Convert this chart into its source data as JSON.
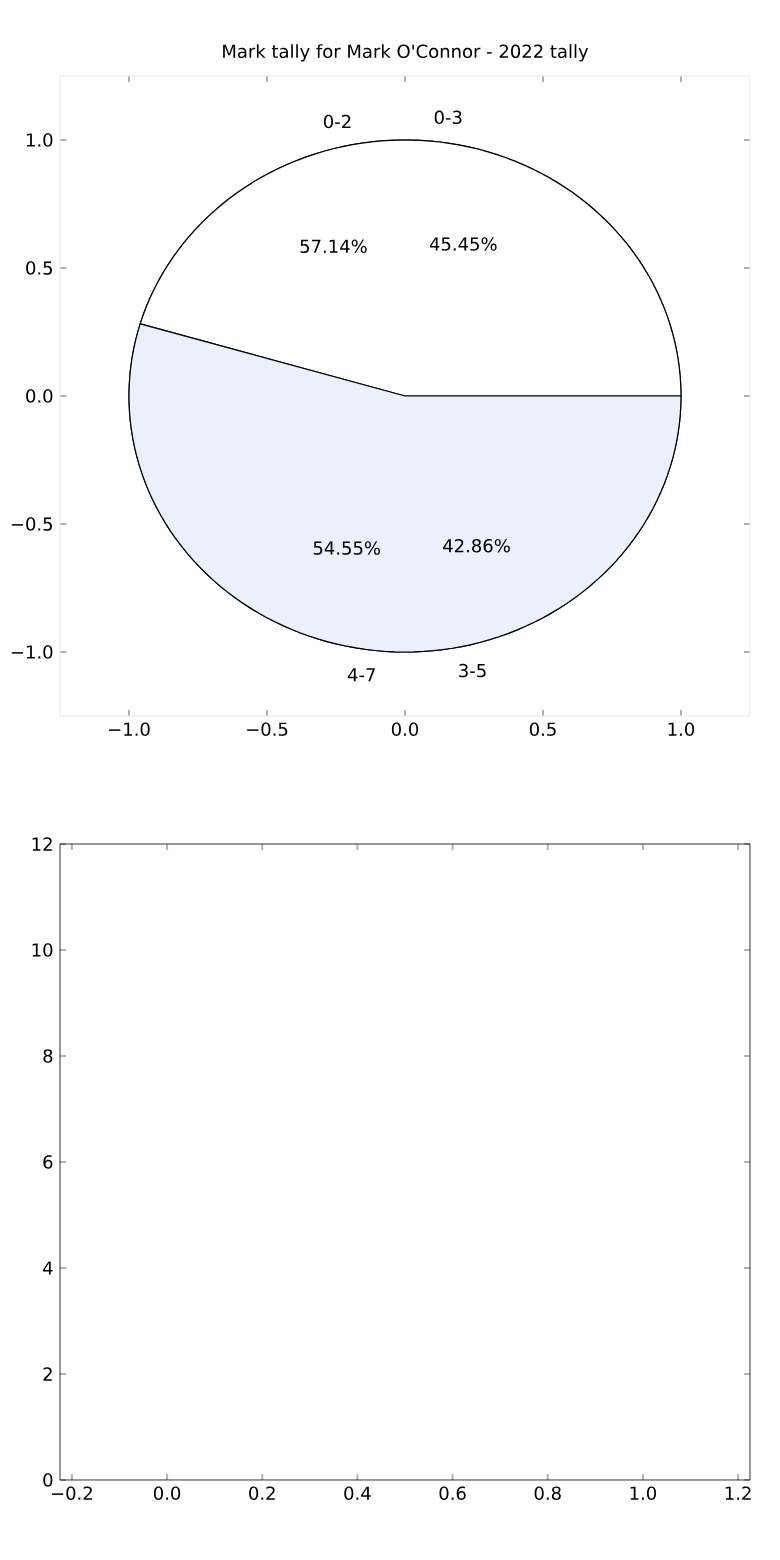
{
  "chart_data": [
    {
      "type": "line",
      "xlim": [
        -1.25,
        1.25
      ],
      "ylim": [
        -1.25,
        1.25
      ],
      "xticks": [
        {
          "value": -1,
          "label": "−1.0"
        },
        {
          "value": -0.5,
          "label": "−0.5"
        },
        {
          "value": 0,
          "label": "0.0"
        },
        {
          "value": 0.5,
          "label": "0.5"
        },
        {
          "value": 1,
          "label": "1.0"
        }
      ],
      "yticks": [
        {
          "value": -1,
          "label": "−1.0"
        },
        {
          "value": -0.5,
          "label": "−0.5"
        },
        {
          "value": 0,
          "label": "0.0"
        },
        {
          "value": 0.5,
          "label": "0.5"
        },
        {
          "value": 1,
          "label": "1.0"
        }
      ]
    },
    {
      "type": "pie",
      "title": "Mark tally for Mark O'Connor - 2022 tally",
      "categories": [
        "0-2",
        "3-5"
      ],
      "values": [
        57.14,
        42.86
      ],
      "colors": [
        "#ffffff",
        "#eaf0fc"
      ],
      "value_labels": [
        "57.14%",
        "42.86%"
      ]
    },
    {
      "type": "pie",
      "categories": [
        "0-3",
        "4-7"
      ],
      "values": [
        45.45,
        54.55
      ],
      "colors": [
        "#ffffff",
        "#eaf0fc"
      ],
      "value_labels": [
        "45.45%",
        "54.55%"
      ]
    },
    {
      "type": "line",
      "xlim": [
        -0.225,
        1.225
      ],
      "ylim": [
        0,
        12
      ],
      "xticks": [
        {
          "value": -0.2,
          "label": "−0.2"
        },
        {
          "value": 0,
          "label": "0.0"
        },
        {
          "value": 0.2,
          "label": "0.2"
        },
        {
          "value": 0.4,
          "label": "0.4"
        },
        {
          "value": 0.6,
          "label": "0.6"
        },
        {
          "value": 0.8,
          "label": "0.8"
        },
        {
          "value": 1,
          "label": "1.0"
        },
        {
          "value": 1.2,
          "label": "1.2"
        }
      ],
      "yticks": [
        0,
        2,
        4,
        6,
        8,
        10,
        12
      ]
    }
  ]
}
